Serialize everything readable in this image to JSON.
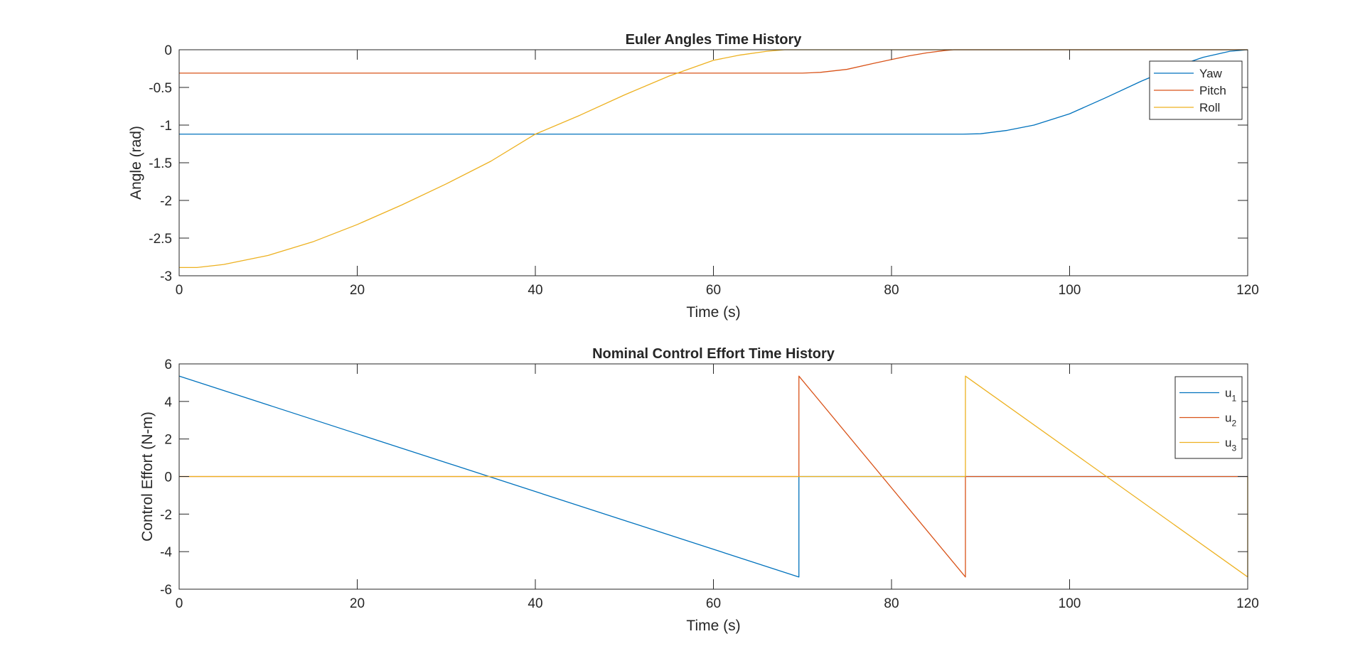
{
  "colors": {
    "yaw": "#0072BD",
    "pitch": "#D95319",
    "roll": "#EDB120",
    "axis": "#262626",
    "background": "#FFFFFF"
  },
  "chart_data": [
    {
      "type": "line",
      "title": "Euler Angles Time History",
      "xlabel": "Time (s)",
      "ylabel": "Angle (rad)",
      "xlim": [
        0,
        120
      ],
      "ylim": [
        -3,
        0
      ],
      "xticks": [
        "0",
        "20",
        "40",
        "60",
        "80",
        "100",
        "120"
      ],
      "yticks": [
        "0",
        "-0.5",
        "-1",
        "-1.5",
        "-2",
        "-2.5",
        "-3"
      ],
      "grid": false,
      "legend_position": "top-right",
      "series": [
        {
          "name": "Yaw",
          "color": "#0072BD",
          "x": [
            0,
            88,
            90,
            93,
            96,
            100,
            104,
            108,
            112,
            115,
            118,
            120
          ],
          "y": [
            -1.12,
            -1.12,
            -1.115,
            -1.07,
            -1.0,
            -0.85,
            -0.64,
            -0.42,
            -0.22,
            -0.1,
            -0.02,
            0.0
          ]
        },
        {
          "name": "Pitch",
          "color": "#D95319",
          "x": [
            0,
            70,
            72,
            75,
            78,
            80,
            82,
            84,
            86,
            87,
            120
          ],
          "y": [
            -0.31,
            -0.31,
            -0.3,
            -0.26,
            -0.18,
            -0.13,
            -0.08,
            -0.04,
            -0.01,
            0.0,
            0.0
          ]
        },
        {
          "name": "Roll",
          "color": "#EDB120",
          "x": [
            0,
            2,
            5,
            10,
            15,
            20,
            25,
            30,
            35,
            40,
            45,
            50,
            55,
            60,
            63,
            66,
            68,
            70,
            120
          ],
          "y": [
            -2.89,
            -2.89,
            -2.85,
            -2.73,
            -2.55,
            -2.32,
            -2.06,
            -1.78,
            -1.48,
            -1.12,
            -0.87,
            -0.6,
            -0.35,
            -0.14,
            -0.07,
            -0.02,
            0.0,
            0.0,
            0.0
          ]
        }
      ]
    },
    {
      "type": "line",
      "title": "Nominal Control Effort Time History",
      "xlabel": "Time (s)",
      "ylabel": "Control Effort (N-m)",
      "xlim": [
        0,
        120
      ],
      "ylim": [
        -6,
        6
      ],
      "xticks": [
        "0",
        "20",
        "40",
        "60",
        "80",
        "100",
        "120"
      ],
      "yticks": [
        "6",
        "4",
        "2",
        "0",
        "-2",
        "-4",
        "-6"
      ],
      "grid": false,
      "legend_position": "top-right",
      "series": [
        {
          "name": "u",
          "subscript": "1",
          "color": "#0072BD",
          "x": [
            0,
            69.6,
            69.6,
            120
          ],
          "y": [
            5.35,
            -5.35,
            0,
            0
          ]
        },
        {
          "name": "u",
          "subscript": "2",
          "color": "#D95319",
          "x": [
            0,
            69.6,
            69.6,
            88.3,
            88.3,
            120
          ],
          "y": [
            0,
            0,
            5.35,
            -5.35,
            0,
            0
          ]
        },
        {
          "name": "u",
          "subscript": "3",
          "color": "#EDB120",
          "x": [
            0,
            88.3,
            88.3,
            120,
            120
          ],
          "y": [
            0,
            0,
            5.35,
            -5.35,
            0
          ]
        }
      ]
    }
  ]
}
